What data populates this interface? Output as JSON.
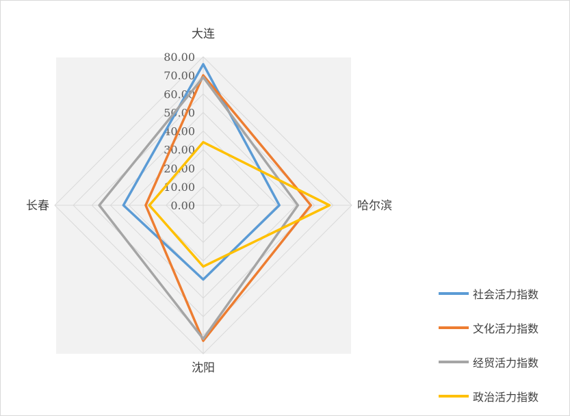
{
  "chart_data": {
    "type": "radar",
    "categories": [
      "大连",
      "哈尔滨",
      "沈阳",
      "长春"
    ],
    "rlim": [
      0,
      80
    ],
    "ticks": [
      "0.00",
      "10.00",
      "20.00",
      "30.00",
      "40.00",
      "50.00",
      "60.00",
      "70.00",
      "80.00"
    ],
    "grid": true,
    "legend_position": "bottom-right",
    "series": [
      {
        "name": "社会活力指数",
        "color": "#5b9bd5",
        "values": [
          76,
          41,
          40,
          43
        ]
      },
      {
        "name": "文化活力指数",
        "color": "#ed7d31",
        "values": [
          70,
          58,
          73,
          31
        ]
      },
      {
        "name": "经贸活力指数",
        "color": "#a5a5a5",
        "values": [
          69,
          51,
          72,
          56
        ]
      },
      {
        "name": "政治活力指数",
        "color": "#ffc000",
        "values": [
          34,
          68,
          33,
          29
        ]
      }
    ]
  }
}
